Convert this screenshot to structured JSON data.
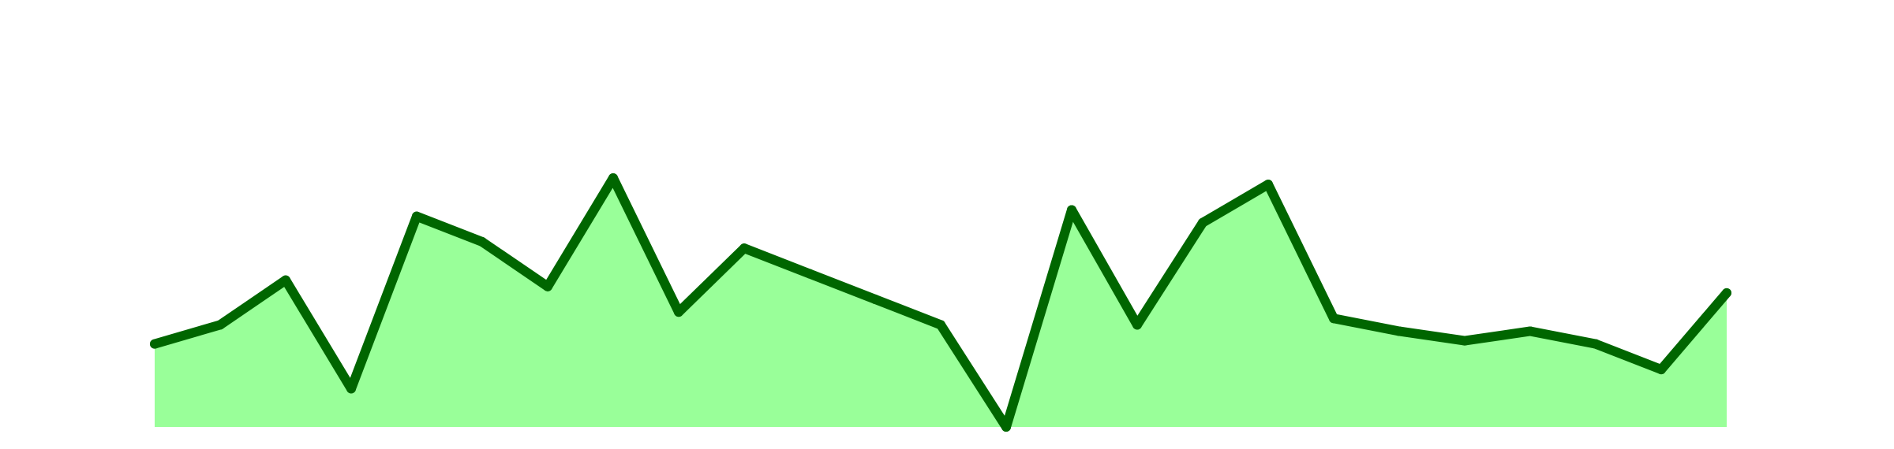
{
  "chart_data": {
    "type": "area",
    "x": [
      1,
      2,
      3,
      4,
      5,
      6,
      7,
      8,
      9,
      10,
      11,
      12,
      13,
      14,
      15,
      16,
      17,
      18,
      19,
      20,
      21,
      22,
      23,
      24,
      25,
      26,
      27
    ],
    "values": [
      50,
      53,
      60,
      43,
      70,
      66,
      59,
      76,
      55,
      65,
      61,
      57,
      53,
      37,
      71,
      53,
      69,
      75,
      54,
      52,
      50.5,
      52,
      50,
      46,
      58,
      null,
      null
    ],
    "ylim": [
      37,
      100
    ],
    "grid": false,
    "colors": {
      "fill": "#99ff99",
      "line": "#006600"
    }
  }
}
